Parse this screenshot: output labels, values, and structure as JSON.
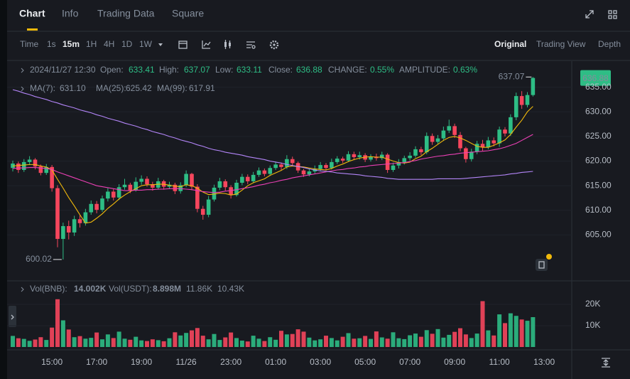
{
  "tabs": [
    "Chart",
    "Info",
    "Trading Data",
    "Square"
  ],
  "toolbar": {
    "intervals": [
      "Time",
      "1s",
      "15m",
      "1H",
      "4H",
      "1D",
      "1W"
    ],
    "views": [
      "Original",
      "Trading View",
      "Depth"
    ]
  },
  "info": {
    "date": "2024/11/27 12:30",
    "fields": [
      {
        "label": "Open:",
        "value": "633.41"
      },
      {
        "label": "High:",
        "value": "637.07"
      },
      {
        "label": "Low:",
        "value": "633.11"
      },
      {
        "label": "Close:",
        "value": "636.88"
      },
      {
        "label": "CHANGE:",
        "value": "0.55%"
      },
      {
        "label": "AMPLITUDE:",
        "value": "0.63%"
      }
    ]
  },
  "chart_data": [
    {
      "type": "candlestick",
      "categories": [
        null,
        null,
        null,
        null,
        null,
        null,
        null,
        "15:00",
        null,
        null,
        null,
        null,
        null,
        null,
        null,
        "17:00",
        null,
        null,
        null,
        null,
        null,
        null,
        null,
        "19:00",
        null,
        null,
        null,
        null,
        null,
        null,
        null,
        "11/26",
        null,
        null,
        null,
        null,
        null,
        null,
        null,
        "23:00",
        null,
        null,
        null,
        null,
        null,
        null,
        null,
        "01:00",
        null,
        null,
        null,
        null,
        null,
        null,
        null,
        "03:00",
        null,
        null,
        null,
        null,
        null,
        null,
        null,
        "05:00",
        null,
        null,
        null,
        null,
        null,
        null,
        null,
        "07:00",
        null,
        null,
        null,
        null,
        null,
        null,
        null,
        "09:00",
        null,
        null,
        null,
        null,
        null,
        null,
        null,
        "11:00",
        null,
        null,
        null,
        null,
        null,
        null,
        null,
        "13:00"
      ],
      "open": [
        618.6,
        619.5,
        618.2,
        619.8,
        620.3,
        618.9,
        617.6,
        618.8,
        614.5,
        604.2,
        606.8,
        605.5,
        608.2,
        607.4,
        609.6,
        611.3,
        610.1,
        612.4,
        613.8,
        612.6,
        614.7,
        615.2,
        614.1,
        615.8,
        616.4,
        615.3,
        614.6,
        615.9,
        614.8,
        615.2,
        613.9,
        615.1,
        617.4,
        614.8,
        610.3,
        609.1,
        612.2,
        614.6,
        615.9,
        614.7,
        613.1,
        615.6,
        616.8,
        615.9,
        617.2,
        618.1,
        617.4,
        618.6,
        619.3,
        618.8,
        620.4,
        619.6,
        618.1,
        617.3,
        617.9,
        618.4,
        619.2,
        618.6,
        619.8,
        620.5,
        620.1,
        621.4,
        620.8,
        621.2,
        620.3,
        620.9,
        620.6,
        621.3,
        618.2,
        619.1,
        619.8,
        620.6,
        621.1,
        622.4,
        621.8,
        625.1,
        623.9,
        624.6,
        626.2,
        627.1,
        625.3,
        622.6,
        620.4,
        621.9,
        623.5,
        622.8,
        624.2,
        623.6,
        626.4,
        625.6,
        628.9,
        633.2,
        631.4,
        633.41,
        null,
        null
      ],
      "high": [
        620.1,
        619.9,
        620.4,
        621.0,
        620.6,
        619.3,
        619.4,
        619.2,
        615.1,
        607.5,
        607.9,
        608.9,
        609.0,
        610.3,
        612.0,
        611.9,
        613.0,
        614.5,
        614.3,
        615.3,
        616.4,
        615.6,
        616.7,
        617.1,
        616.9,
        615.8,
        616.6,
        616.2,
        615.8,
        615.6,
        615.7,
        618.1,
        617.6,
        615.3,
        610.9,
        612.9,
        615.2,
        616.6,
        616.3,
        615.1,
        616.2,
        617.4,
        617.3,
        617.8,
        618.7,
        618.5,
        619.1,
        619.9,
        619.7,
        621.2,
        620.9,
        619.9,
        618.4,
        618.5,
        619.1,
        619.8,
        619.6,
        620.5,
        621.0,
        620.9,
        622.0,
        621.9,
        621.9,
        621.6,
        621.4,
        621.5,
        621.9,
        621.6,
        619.7,
        620.4,
        621.1,
        621.8,
        623.0,
        622.9,
        625.8,
        625.6,
        625.3,
        627.0,
        628.4,
        627.6,
        625.9,
        622.9,
        622.5,
        624.1,
        624.3,
        624.9,
        624.8,
        627.0,
        626.9,
        629.5,
        633.9,
        634.2,
        634.0,
        637.07,
        null,
        null
      ],
      "low": [
        617.9,
        617.6,
        617.8,
        619.2,
        618.3,
        617.1,
        617.2,
        613.8,
        602.5,
        600.02,
        604.1,
        604.8,
        606.5,
        606.9,
        609.1,
        609.4,
        609.7,
        611.8,
        612.0,
        612.1,
        614.2,
        613.5,
        613.8,
        615.2,
        614.8,
        614.0,
        614.2,
        614.2,
        614.3,
        613.3,
        613.4,
        614.7,
        614.1,
        609.6,
        608.1,
        608.6,
        611.8,
        614.1,
        614.0,
        612.4,
        612.8,
        615.1,
        615.3,
        615.6,
        616.8,
        616.9,
        617.0,
        618.2,
        618.1,
        618.4,
        619.1,
        617.6,
        616.8,
        616.9,
        617.5,
        617.9,
        618.1,
        618.3,
        619.4,
        619.6,
        619.8,
        620.2,
        620.3,
        619.8,
        619.9,
        620.1,
        620.2,
        617.6,
        617.8,
        618.5,
        619.3,
        620.1,
        620.7,
        621.2,
        621.4,
        623.3,
        623.5,
        624.1,
        625.7,
        624.7,
        622.0,
        619.7,
        619.9,
        621.4,
        622.1,
        622.4,
        623.0,
        622.9,
        625.0,
        625.1,
        628.3,
        630.6,
        630.9,
        633.11,
        null,
        null
      ],
      "close": [
        619.5,
        618.2,
        619.8,
        620.3,
        618.9,
        617.6,
        618.8,
        614.5,
        604.2,
        606.8,
        605.5,
        608.2,
        607.4,
        609.6,
        611.3,
        610.1,
        612.4,
        613.8,
        612.6,
        614.7,
        615.2,
        614.1,
        615.8,
        616.4,
        615.3,
        614.6,
        615.9,
        614.8,
        615.2,
        613.9,
        615.1,
        617.4,
        614.8,
        610.3,
        609.1,
        612.2,
        614.6,
        615.9,
        614.7,
        613.1,
        615.6,
        616.8,
        615.9,
        617.2,
        618.1,
        617.4,
        618.6,
        619.3,
        618.8,
        620.4,
        619.6,
        618.1,
        617.3,
        617.9,
        618.4,
        619.2,
        618.6,
        619.8,
        620.5,
        620.1,
        621.4,
        620.8,
        621.2,
        620.3,
        620.9,
        620.6,
        621.3,
        618.2,
        619.1,
        619.8,
        620.6,
        621.1,
        622.4,
        621.8,
        625.1,
        623.9,
        624.6,
        626.2,
        627.1,
        625.3,
        622.6,
        620.4,
        621.9,
        623.5,
        622.8,
        624.2,
        623.6,
        626.4,
        625.6,
        628.9,
        633.2,
        631.4,
        633.41,
        636.88,
        null,
        null
      ],
      "up_color": "#2ebd85",
      "down_color": "#f6465d",
      "series": [
        {
          "name": "MA(7):",
          "value_label": "631.10",
          "color": "#f0b90b",
          "values": [
            619.0,
            619.1,
            619.2,
            619.3,
            619.3,
            619.0,
            618.8,
            618.2,
            616.3,
            614.5,
            612.6,
            610.9,
            609.1,
            607.4,
            607.6,
            608.4,
            609.3,
            610.4,
            611.3,
            612.3,
            613.1,
            613.8,
            614.4,
            615.0,
            615.2,
            615.2,
            615.3,
            615.3,
            615.1,
            614.9,
            614.8,
            615.2,
            615.0,
            614.5,
            613.7,
            613.2,
            613.3,
            613.5,
            613.4,
            613.1,
            613.3,
            614.1,
            615.0,
            615.6,
            616.0,
            616.4,
            617.1,
            617.6,
            618.1,
            618.8,
            619.0,
            618.9,
            618.8,
            618.6,
            618.4,
            618.3,
            618.2,
            618.5,
            619.0,
            619.4,
            619.9,
            620.3,
            620.6,
            620.8,
            620.9,
            620.8,
            620.8,
            620.4,
            620.0,
            619.7,
            619.6,
            619.8,
            620.5,
            621.0,
            621.9,
            622.6,
            623.4,
            624.2,
            624.8,
            625.0,
            624.7,
            624.2,
            623.6,
            623.0,
            622.8,
            622.8,
            623.2,
            623.7,
            624.3,
            625.4,
            626.9,
            628.3,
            630.0,
            631.1,
            null,
            null
          ]
        },
        {
          "name": "MA(25):",
          "value_label": "625.42",
          "color": "#eb40b5",
          "values": [
            618.5,
            618.6,
            618.6,
            618.7,
            618.7,
            618.6,
            618.5,
            618.3,
            617.8,
            617.4,
            617.0,
            616.6,
            616.2,
            615.8,
            615.4,
            615.0,
            614.8,
            614.6,
            614.4,
            614.2,
            614.0,
            614.0,
            614.1,
            614.1,
            614.2,
            614.2,
            614.3,
            614.3,
            614.4,
            614.4,
            614.4,
            614.3,
            614.2,
            614.0,
            613.8,
            613.7,
            613.6,
            613.7,
            613.9,
            614.0,
            614.2,
            614.4,
            614.6,
            614.8,
            615.1,
            615.3,
            615.6,
            615.8,
            616.1,
            616.3,
            616.6,
            616.8,
            617.0,
            617.2,
            617.4,
            617.6,
            617.8,
            618.0,
            618.2,
            618.3,
            618.5,
            618.6,
            618.8,
            618.9,
            619.1,
            619.2,
            619.3,
            619.4,
            619.5,
            619.6,
            619.7,
            619.9,
            620.1,
            620.4,
            620.6,
            620.8,
            621.0,
            621.1,
            621.3,
            621.4,
            621.6,
            621.7,
            621.8,
            621.9,
            622.0,
            622.1,
            622.3,
            622.5,
            622.8,
            623.2,
            623.6,
            624.2,
            624.8,
            625.42,
            null,
            null
          ]
        },
        {
          "name": "MA(99):",
          "value_label": "617.91",
          "color": "#b385f8",
          "values": [
            634.5,
            634.2,
            633.8,
            633.5,
            633.1,
            632.8,
            632.5,
            632.1,
            631.8,
            631.4,
            631.1,
            630.8,
            630.4,
            630.1,
            629.8,
            629.4,
            629.1,
            628.7,
            628.4,
            628.1,
            627.7,
            627.4,
            627.1,
            626.7,
            626.4,
            626.0,
            625.7,
            625.4,
            625.0,
            624.7,
            624.3,
            624.0,
            623.7,
            623.3,
            623.0,
            622.6,
            622.3,
            622.1,
            621.8,
            621.6,
            621.4,
            621.2,
            620.9,
            620.7,
            620.5,
            620.3,
            620.0,
            619.8,
            619.6,
            619.3,
            619.1,
            618.9,
            618.7,
            618.4,
            618.2,
            618.0,
            617.9,
            617.8,
            617.6,
            617.5,
            617.4,
            617.3,
            617.2,
            617.0,
            616.9,
            616.8,
            616.7,
            616.5,
            616.4,
            616.3,
            616.3,
            616.3,
            616.3,
            616.3,
            616.3,
            616.3,
            616.4,
            616.4,
            616.4,
            616.4,
            616.4,
            616.5,
            616.6,
            616.7,
            616.8,
            616.9,
            617.0,
            617.1,
            617.2,
            617.4,
            617.5,
            617.7,
            617.8,
            617.91,
            null,
            null
          ]
        }
      ],
      "ylim": [
        596.4,
        640
      ],
      "yticks": [
        {
          "value": 605,
          "label": "605.00"
        },
        {
          "value": 610,
          "label": "610.00"
        },
        {
          "value": 615,
          "label": "615.00"
        },
        {
          "value": 620,
          "label": "620.00"
        },
        {
          "value": 625,
          "label": "625.00"
        },
        {
          "value": 630,
          "label": "630.00"
        },
        {
          "value": 635,
          "label": "635.00"
        }
      ],
      "grid": true
    },
    {
      "type": "bar",
      "legend": [
        {
          "label": "Vol(BNB):",
          "value": "14.002K",
          "color": "#eaecef"
        },
        {
          "label": "Vol(USDT):",
          "value": "8.898M",
          "color": "#eaecef"
        },
        {
          "value": "11.86K",
          "color": "#6fc7e8"
        },
        {
          "value": "10.43K",
          "color": "#eb40b5"
        }
      ],
      "values": [
        5200,
        4100,
        3800,
        2900,
        3500,
        4600,
        3300,
        9100,
        22400,
        12500,
        8200,
        4600,
        5100,
        3900,
        4300,
        6800,
        3600,
        5900,
        4200,
        7200,
        3900,
        3400,
        4800,
        3100,
        2800,
        3600,
        3200,
        2700,
        4100,
        6900,
        5400,
        6600,
        7800,
        8900,
        5300,
        3600,
        6100,
        3300,
        4500,
        6800,
        4200,
        3000,
        2600,
        5300,
        3900,
        2800,
        4600,
        3400,
        7600,
        5900,
        6100,
        8300,
        7200,
        4400,
        3100,
        3600,
        5300,
        4200,
        3100,
        4800,
        6500,
        3900,
        4100,
        5200,
        3800,
        7300,
        4500,
        3900,
        6900,
        4100,
        3700,
        5500,
        6300,
        4800,
        7900,
        6200,
        8400,
        4400,
        5700,
        7100,
        8800,
        5900,
        4200,
        6300,
        21500,
        7800,
        5400,
        15300,
        11200,
        15800,
        14600,
        12900,
        12300,
        14002,
        null,
        null
      ],
      "ylim": [
        0,
        29000
      ],
      "yticks": [
        {
          "value": 10000,
          "label": "10K"
        },
        {
          "value": 20000,
          "label": "20K"
        }
      ]
    }
  ]
}
